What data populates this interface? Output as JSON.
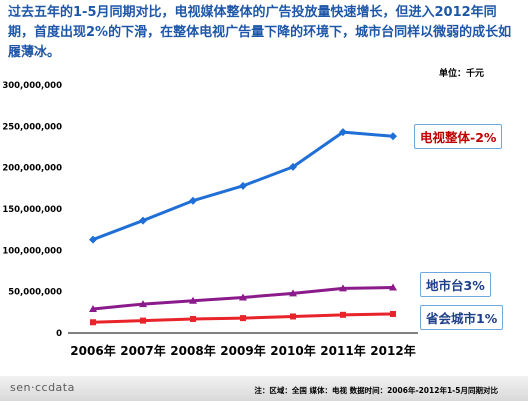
{
  "headline": "过去五年的1-5月同期对比，电视媒体整体的广告投放量快速增长，但进入2012年同期，首度出现2%的下滑，在整体电视广告量下降的环境下，城市台同样以微弱的成长如履薄冰。",
  "unit_label": "单位：千元",
  "callouts": {
    "total": "电视整体-2%",
    "local": "地市台3%",
    "provincial": "省会城市1%"
  },
  "footer": {
    "logo": "sen·ccdata",
    "note": "注：区域：全国  媒体：电视  数据时间：2006年-2012年1-5月同期对比"
  },
  "colors": {
    "total": "#1f6fd6",
    "local": "#8b1a8b",
    "provincial": "#e8232a",
    "headline": "#1f57a8"
  },
  "chart_data": {
    "type": "line",
    "categories": [
      "2006年",
      "2007年",
      "2008年",
      "2009年",
      "2010年",
      "2011年",
      "2012年"
    ],
    "ylim": [
      0,
      300000000
    ],
    "y_ticks": [
      "0",
      "50,000,000",
      "100,000,000",
      "150,000,000",
      "200,000,000",
      "250,000,000",
      "300,000,000"
    ],
    "grid": false,
    "series": [
      {
        "key": "total",
        "values": [
          113000000,
          136000000,
          160000000,
          178000000,
          201000000,
          243000000,
          238000000
        ]
      },
      {
        "key": "local",
        "values": [
          29000000,
          35000000,
          39000000,
          43000000,
          48000000,
          54000000,
          55000000
        ]
      },
      {
        "key": "provincial",
        "values": [
          13000000,
          15000000,
          17000000,
          18000000,
          20000000,
          22000000,
          23000000
        ]
      }
    ]
  }
}
